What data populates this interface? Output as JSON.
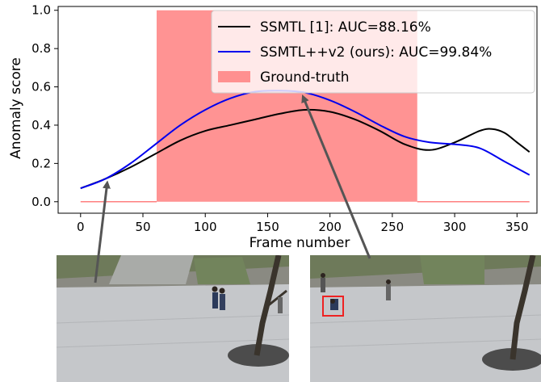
{
  "chart_data": {
    "type": "line",
    "xlabel": "Frame number",
    "ylabel": "Anomaly score",
    "xlim": [
      -18,
      366
    ],
    "ylim": [
      -0.06,
      1.02
    ],
    "xticks": [
      0,
      50,
      100,
      150,
      200,
      250,
      300,
      350
    ],
    "yticks": [
      0.0,
      0.2,
      0.4,
      0.6,
      0.8,
      1.0
    ],
    "ytick_labels": [
      "0.0",
      "0.2",
      "0.4",
      "0.6",
      "0.8",
      "1.0"
    ],
    "grid": false,
    "legend_position": "top-right",
    "series": [
      {
        "name": "SSMTL [1]: AUC=88.16%",
        "color": "#000000",
        "x": [
          0,
          20,
          40,
          60,
          80,
          100,
          120,
          140,
          160,
          180,
          200,
          220,
          240,
          260,
          280,
          300,
          320,
          330,
          340,
          350,
          360
        ],
        "y": [
          0.07,
          0.12,
          0.18,
          0.25,
          0.32,
          0.37,
          0.4,
          0.43,
          0.46,
          0.48,
          0.47,
          0.43,
          0.37,
          0.3,
          0.27,
          0.31,
          0.37,
          0.38,
          0.36,
          0.31,
          0.26
        ]
      },
      {
        "name": "SSMTL++v2 (ours): AUC=99.84%",
        "color": "#0000ee",
        "x": [
          0,
          20,
          40,
          60,
          80,
          100,
          120,
          140,
          160,
          180,
          200,
          220,
          240,
          260,
          280,
          300,
          320,
          340,
          360
        ],
        "y": [
          0.07,
          0.12,
          0.2,
          0.3,
          0.4,
          0.48,
          0.54,
          0.575,
          0.58,
          0.57,
          0.53,
          0.47,
          0.4,
          0.34,
          0.31,
          0.3,
          0.28,
          0.21,
          0.14
        ]
      }
    ],
    "ground_truth": {
      "name": "Ground-truth",
      "color": "#ff8080",
      "x": [
        0,
        61,
        61,
        270,
        270,
        360
      ],
      "y": [
        0,
        0,
        1,
        1,
        0,
        0
      ]
    },
    "annotations": [
      {
        "label": "arrow",
        "from_frame_image": "left",
        "to_point": [
          20,
          0.12
        ]
      },
      {
        "label": "arrow",
        "from_frame_image": "right",
        "to_point": [
          178,
          0.57
        ]
      }
    ]
  },
  "frames": [
    {
      "name": "normal-frame",
      "anomaly_box": false
    },
    {
      "name": "abnormal-frame",
      "anomaly_box": true,
      "box_color": "#ee2222"
    }
  ]
}
